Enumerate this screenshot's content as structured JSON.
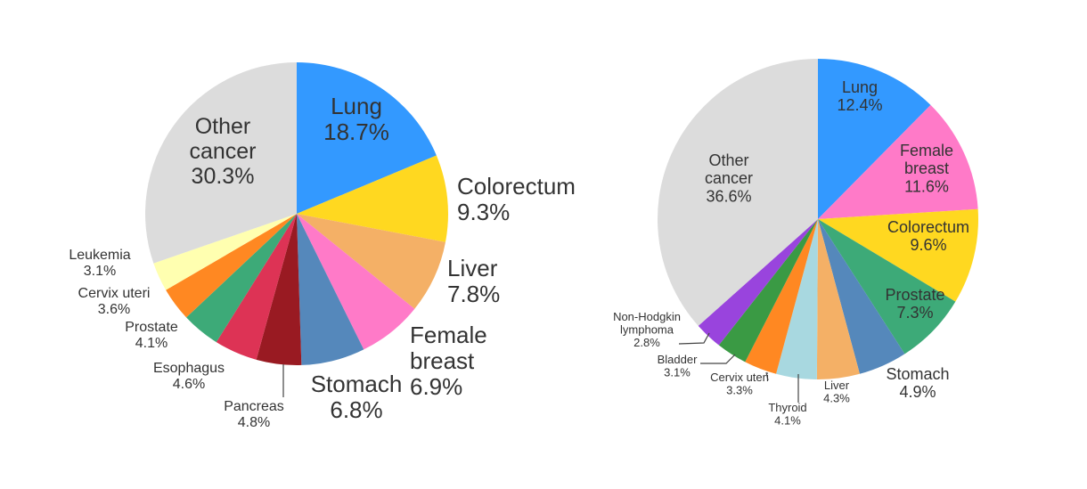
{
  "chart_data": [
    {
      "type": "pie",
      "title": "",
      "start": "12 o'clock",
      "direction": "clockwise",
      "slices": [
        {
          "label": "Lung",
          "value": 18.7,
          "display": "18.7%",
          "color": "#3399ff"
        },
        {
          "label": "Colorectum",
          "value": 9.3,
          "display": "9.3%",
          "color": "#ffd820"
        },
        {
          "label": "Liver",
          "value": 7.8,
          "display": "7.8%",
          "color": "#f4b066"
        },
        {
          "label": "Female breast",
          "value": 6.9,
          "display": "6.9%",
          "color": "#ff7ac8"
        },
        {
          "label": "Stomach",
          "value": 6.8,
          "display": "6.8%",
          "color": "#5588bb"
        },
        {
          "label": "Pancreas",
          "value": 4.8,
          "display": "4.8%",
          "color": "#991a22"
        },
        {
          "label": "Esophagus",
          "value": 4.6,
          "display": "4.6%",
          "color": "#dd3355"
        },
        {
          "label": "Prostate",
          "value": 4.1,
          "display": "4.1%",
          "color": "#3daa78"
        },
        {
          "label": "Cervix uteri",
          "value": 3.6,
          "display": "3.6%",
          "color": "#ff8822"
        },
        {
          "label": "Leukemia",
          "value": 3.1,
          "display": "3.1%",
          "color": "#ffffb0"
        },
        {
          "label": "Other cancer",
          "value": 30.3,
          "display": "30.3%",
          "color": "#dcdcdc"
        }
      ]
    },
    {
      "type": "pie",
      "title": "",
      "start": "12 o'clock",
      "direction": "clockwise",
      "slices": [
        {
          "label": "Lung",
          "value": 12.4,
          "display": "12.4%",
          "color": "#3399ff"
        },
        {
          "label": "Female breast",
          "value": 11.6,
          "display": "11.6%",
          "color": "#ff7ac8"
        },
        {
          "label": "Colorectum",
          "value": 9.6,
          "display": "9.6%",
          "color": "#ffd820"
        },
        {
          "label": "Prostate",
          "value": 7.3,
          "display": "7.3%",
          "color": "#3daa78"
        },
        {
          "label": "Stomach",
          "value": 4.9,
          "display": "4.9%",
          "color": "#5588bb"
        },
        {
          "label": "Liver",
          "value": 4.3,
          "display": "4.3%",
          "color": "#f4b066"
        },
        {
          "label": "Thyroid",
          "value": 4.1,
          "display": "4.1%",
          "color": "#a8d8e0"
        },
        {
          "label": "Cervix uteri",
          "value": 3.3,
          "display": "3.3%",
          "color": "#ff8822"
        },
        {
          "label": "Bladder",
          "value": 3.1,
          "display": "3.1%",
          "color": "#3a9a44"
        },
        {
          "label": "Non-Hodgkin lymphoma",
          "value": 2.8,
          "display": "2.8%",
          "color": "#9944dd"
        },
        {
          "label": "Other cancer",
          "value": 36.6,
          "display": "36.6%",
          "color": "#dcdcdc"
        }
      ]
    }
  ]
}
